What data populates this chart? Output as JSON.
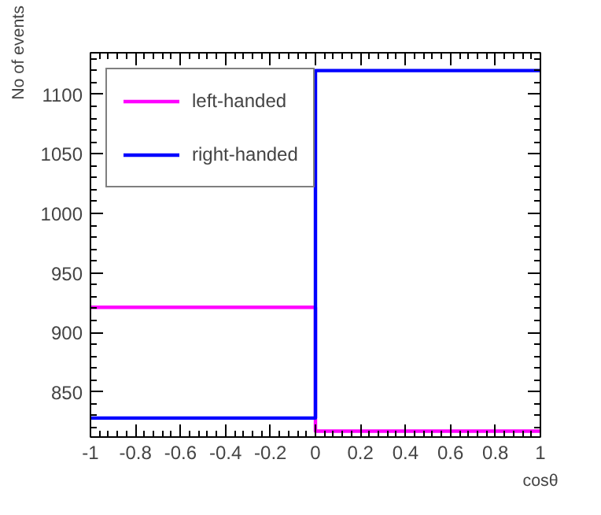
{
  "chart_data": {
    "type": "histogram",
    "xlabel": "cosθ",
    "ylabel": "No of events",
    "bins": [
      -1,
      0,
      1
    ],
    "series": [
      {
        "name": "left-handed",
        "color": "#ff00ff",
        "values": [
          921,
          817
        ]
      },
      {
        "name": "right-handed",
        "color": "#0000ff",
        "values": [
          828,
          1120
        ]
      }
    ],
    "xlim": [
      -1,
      1
    ],
    "xticks": [
      -1,
      -0.8,
      -0.6,
      -0.4,
      -0.2,
      0,
      0.2,
      0.4,
      0.6,
      0.8,
      1
    ],
    "ylim": [
      812,
      1135
    ],
    "yticks": [
      850,
      900,
      950,
      1000,
      1050,
      1100
    ],
    "grid": false,
    "legend": "top left"
  }
}
